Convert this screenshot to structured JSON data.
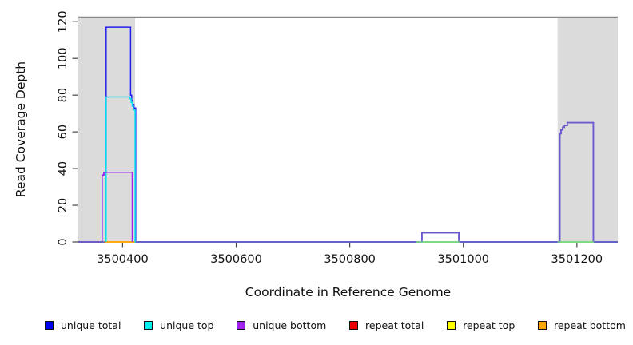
{
  "chart_data": {
    "type": "line",
    "title": "",
    "xlabel": "Coordinate in Reference Genome",
    "ylabel": "Read Coverage Depth",
    "xlim": [
      3500322,
      3501272
    ],
    "ylim": [
      0,
      122.5
    ],
    "x_ticks": [
      3500400,
      3500600,
      3500800,
      3501000,
      3501200
    ],
    "y_ticks": [
      0,
      20,
      40,
      60,
      80,
      100,
      120
    ],
    "grid": false,
    "legend_position": "bottom",
    "colors": {
      "band": "#DBDBDB",
      "top_border": "#8A8A8A",
      "axis": "#444444",
      "tick_label": "#111111",
      "baseline_blend": "#6A5ACD",
      "top_strand_blend": "#7FE080"
    },
    "background_bands": [
      {
        "name": "repeat-region-left",
        "x_start": 3500322,
        "x_end": 3500422,
        "color": "#DBDBDB"
      },
      {
        "name": "repeat-region-right",
        "x_start": 3501166,
        "x_end": 3501272,
        "color": "#DBDBDB"
      }
    ],
    "legend": [
      {
        "label": "unique total",
        "color": "#0000F0"
      },
      {
        "label": "unique top",
        "color": "#00EEEE"
      },
      {
        "label": "unique bottom",
        "color": "#A020F0"
      },
      {
        "label": "repeat total",
        "color": "#EE0000"
      },
      {
        "label": "repeat top",
        "color": "#FFFF00"
      },
      {
        "label": "repeat bottom",
        "color": "#FFA500"
      }
    ],
    "series": [
      {
        "name": "repeat total",
        "color": "#EE0000",
        "width": 1.5,
        "points": [
          [
            3500322,
            0
          ],
          [
            3501272,
            0
          ]
        ]
      },
      {
        "name": "repeat top",
        "color": "#FFFF00",
        "width": 1.5,
        "points": [
          [
            3500322,
            0
          ],
          [
            3501272,
            0
          ]
        ]
      },
      {
        "name": "repeat bottom",
        "color": "#FFA500",
        "width": 1.6,
        "points": [
          [
            3500322,
            0
          ],
          [
            3501272,
            0
          ]
        ]
      },
      {
        "name": "unique total",
        "color": "#2020EE",
        "width": 1.5,
        "points": [
          [
            3500322,
            0
          ],
          [
            3500364,
            0
          ],
          [
            3500364,
            36.5
          ],
          [
            3500367,
            36.5
          ],
          [
            3500367,
            38
          ],
          [
            3500371,
            38
          ],
          [
            3500371,
            117
          ],
          [
            3500414,
            117
          ],
          [
            3500414,
            80
          ],
          [
            3500416,
            80
          ],
          [
            3500416,
            77
          ],
          [
            3500418,
            77
          ],
          [
            3500418,
            75
          ],
          [
            3500420,
            75
          ],
          [
            3500420,
            73
          ],
          [
            3500423,
            73
          ],
          [
            3500423,
            0
          ],
          [
            3500927,
            0
          ],
          [
            3500927,
            5
          ],
          [
            3500992,
            5
          ],
          [
            3500992,
            0
          ],
          [
            3501170,
            0
          ],
          [
            3501170,
            59
          ],
          [
            3501172,
            59
          ],
          [
            3501172,
            61
          ],
          [
            3501175,
            61
          ],
          [
            3501175,
            62.5
          ],
          [
            3501178,
            62.5
          ],
          [
            3501178,
            63.5
          ],
          [
            3501183,
            63.5
          ],
          [
            3501183,
            65
          ],
          [
            3501229,
            65
          ],
          [
            3501229,
            0
          ],
          [
            3501272,
            0
          ]
        ]
      },
      {
        "name": "unique top",
        "color": "#00E0EE",
        "width": 1.5,
        "points": [
          [
            3500371,
            0
          ],
          [
            3500371,
            79
          ],
          [
            3500413,
            79
          ],
          [
            3500413,
            78
          ],
          [
            3500415,
            78
          ],
          [
            3500415,
            76
          ],
          [
            3500417,
            76
          ],
          [
            3500417,
            74
          ],
          [
            3500419,
            74
          ],
          [
            3500419,
            72
          ],
          [
            3500422,
            72
          ],
          [
            3500422,
            0
          ],
          [
            3501272,
            0
          ]
        ]
      },
      {
        "name": "unique bottom",
        "color": "#A020F0",
        "width": 1.5,
        "points": [
          [
            3500364,
            0
          ],
          [
            3500364,
            36.5
          ],
          [
            3500367,
            36.5
          ],
          [
            3500367,
            38
          ],
          [
            3500417,
            38
          ],
          [
            3500417,
            0
          ]
        ]
      },
      {
        "name": "unique bottom baseline blend left",
        "color": "#6A5ACD",
        "width": 1.8,
        "points": [
          [
            3500322,
            0
          ],
          [
            3500368,
            0
          ]
        ]
      },
      {
        "name": "unique bottom over total blend",
        "color": "#6A5ACD",
        "width": 1.8,
        "points": [
          [
            3500423,
            0
          ],
          [
            3500927,
            0
          ],
          [
            3500927,
            5
          ],
          [
            3500992,
            5
          ],
          [
            3500992,
            0
          ],
          [
            3501170,
            0
          ],
          [
            3501170,
            59
          ],
          [
            3501172,
            59
          ],
          [
            3501172,
            61
          ],
          [
            3501175,
            61
          ],
          [
            3501175,
            62.5
          ],
          [
            3501178,
            62.5
          ],
          [
            3501178,
            63.5
          ],
          [
            3501183,
            63.5
          ],
          [
            3501183,
            65
          ],
          [
            3501229,
            65
          ],
          [
            3501229,
            0
          ],
          [
            3501272,
            0
          ]
        ]
      },
      {
        "name": "unique top zero blend mid",
        "color": "#7FE080",
        "width": 1.5,
        "points": [
          [
            3500916,
            0
          ],
          [
            3500994,
            0
          ]
        ]
      },
      {
        "name": "unique top zero blend right",
        "color": "#7FE080",
        "width": 1.5,
        "points": [
          [
            3501166,
            0
          ],
          [
            3501230,
            0
          ]
        ]
      }
    ]
  }
}
